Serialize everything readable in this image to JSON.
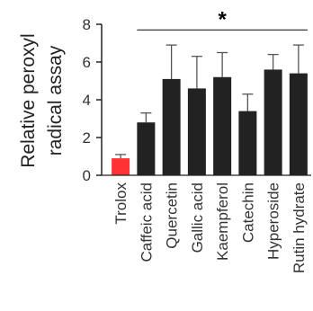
{
  "chart_data": {
    "type": "bar",
    "ylabel_lines": [
      "Relative peroxyl",
      "radical assay"
    ],
    "ylim": [
      0,
      8
    ],
    "yticks": [
      0,
      2,
      4,
      6,
      8
    ],
    "categories": [
      "Trolox",
      "Caffeic acid",
      "Quercetin",
      "Gallic acid",
      "Kaempferol",
      "Catechin",
      "Hyperoside",
      "Rutin hydrate"
    ],
    "values": [
      0.9,
      2.8,
      5.1,
      4.6,
      5.2,
      3.4,
      5.6,
      5.4
    ],
    "errors": [
      0.2,
      0.5,
      1.8,
      1.7,
      1.3,
      0.9,
      0.8,
      1.5
    ],
    "colors": [
      "#ff3333",
      "#222222",
      "#222222",
      "#222222",
      "#222222",
      "#222222",
      "#222222",
      "#222222"
    ],
    "significance": {
      "label": "*",
      "from_category": "Caffeic acid",
      "to_category": "Rutin hydrate",
      "y": 7.7
    }
  }
}
